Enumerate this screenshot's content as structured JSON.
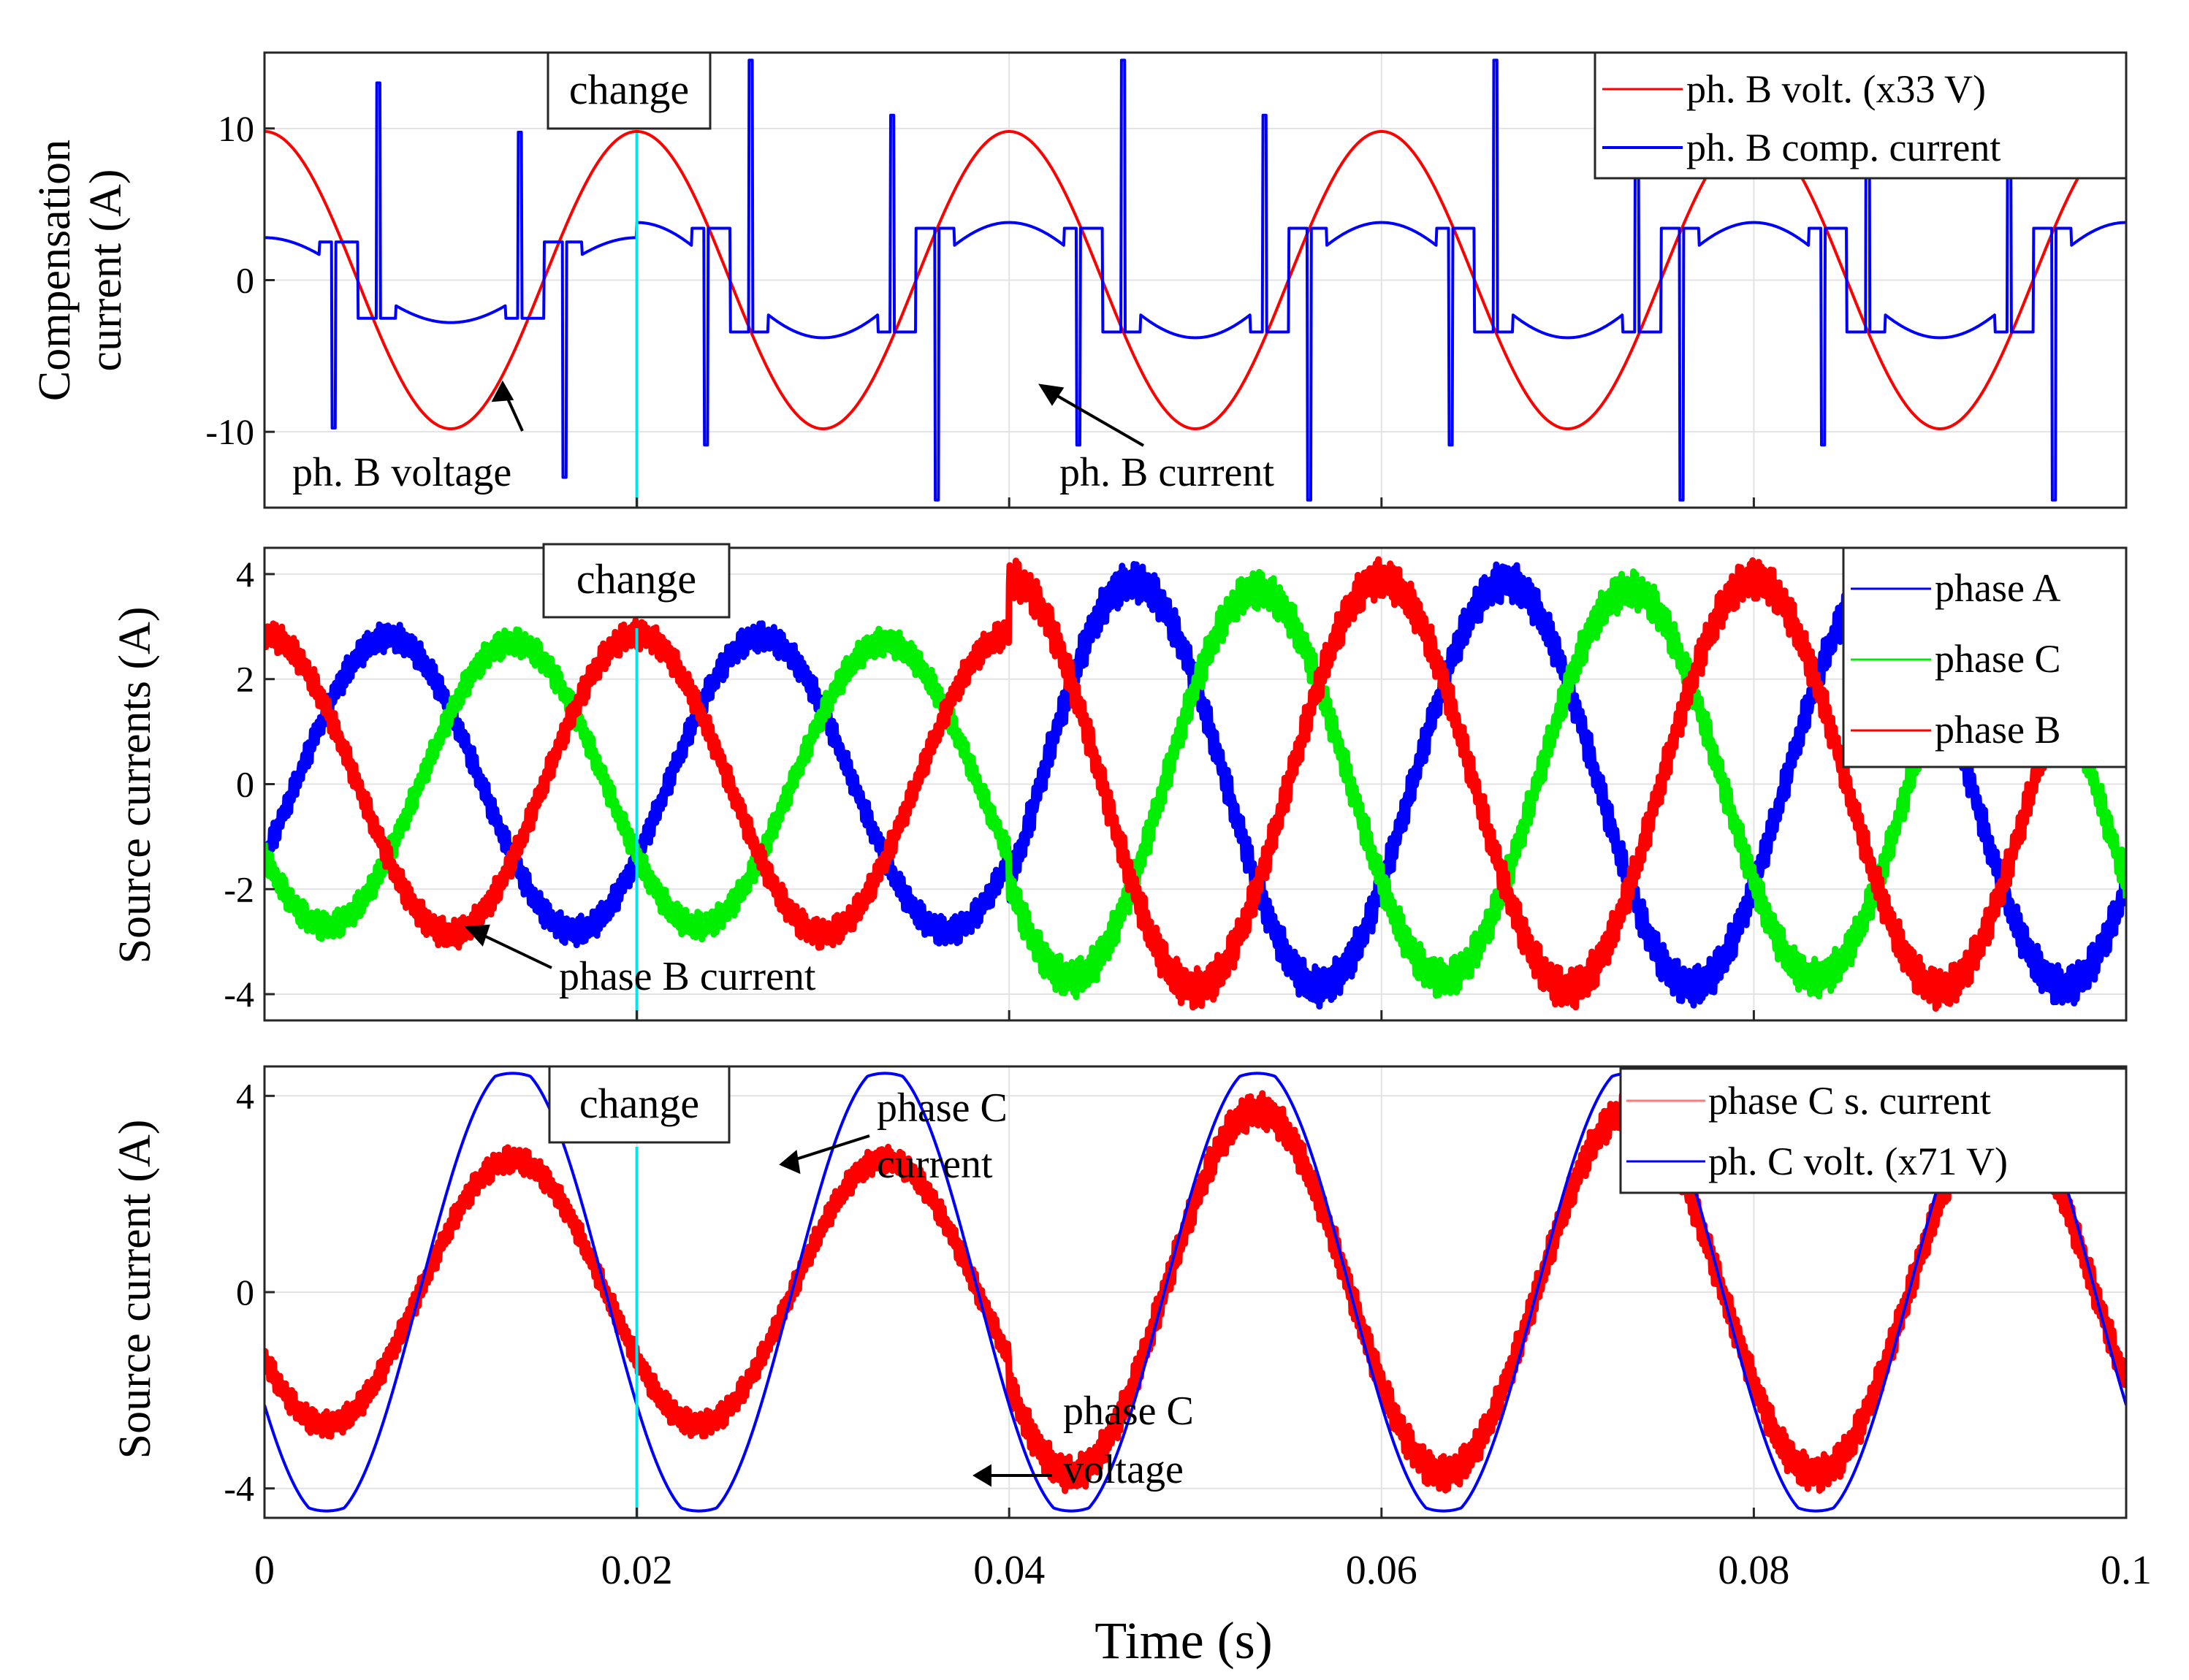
{
  "chart_data": [
    {
      "type": "line",
      "ylabel": "Compensation current (A)",
      "ylabel_lines": [
        "Compensation",
        "current (A)"
      ],
      "xlim": [
        0,
        0.1
      ],
      "ylim": [
        -15,
        15
      ],
      "yticks": [
        -10,
        0,
        10
      ],
      "ytick_labels": [
        "-10",
        "0",
        "10"
      ],
      "grid": true,
      "legend_position": "top-right",
      "legend": [
        "ph. B volt. (x33 V)",
        "ph. B comp. current"
      ],
      "series": [
        {
          "name": "ph. B volt. (x33 V)",
          "color": "#ff0000",
          "kind": "sine",
          "amplitude": 9.8,
          "phase_deg": 90,
          "frequency_hz": 50
        },
        {
          "name": "ph. B comp. current",
          "color": "#0000ff",
          "kind": "compensation",
          "before_change": {
            "peak": 13.0,
            "flat_high": 2.8,
            "flat_low": -2.8
          },
          "after_change": {
            "peak": 14.5,
            "flat_high": 3.8,
            "flat_low": -3.8
          }
        }
      ],
      "change_time": 0.02,
      "change_label": "change",
      "annotations": [
        {
          "text": "ph. B voltage",
          "x": 0.0135,
          "y": -6.5
        },
        {
          "text": "ph. B current",
          "x": 0.041,
          "y": -7.0
        }
      ]
    },
    {
      "type": "line",
      "ylabel": "Source currents (A)",
      "xlim": [
        0,
        0.1
      ],
      "ylim": [
        -4.5,
        4.5
      ],
      "yticks": [
        -4,
        -2,
        0,
        2,
        4
      ],
      "ytick_labels": [
        "-4",
        "-2",
        "0",
        "2",
        "4"
      ],
      "grid": true,
      "legend_position": "top-right",
      "legend": [
        "phase A",
        "phase C",
        "phase B"
      ],
      "series": [
        {
          "name": "phase A",
          "color": "#0000ff",
          "kind": "sine",
          "phase_deg": -30,
          "amp_before": 2.8,
          "amp_after": 3.85
        },
        {
          "name": "phase C",
          "color": "#00ee00",
          "kind": "sine",
          "phase_deg": -150,
          "amp_before": 2.7,
          "amp_after": 3.7
        },
        {
          "name": "phase B",
          "color": "#ff0000",
          "kind": "sine",
          "phase_deg": 90,
          "amp_before": 2.85,
          "amp_after": 3.9
        }
      ],
      "amplitude_step_time": 0.04,
      "change_time": 0.02,
      "change_label": "change",
      "annotations": [
        {
          "text": "phase B current",
          "x": 0.0105,
          "y": -2.9
        }
      ]
    },
    {
      "type": "line",
      "ylabel": "Source current (A)",
      "xlim": [
        0,
        0.1
      ],
      "ylim": [
        -4.6,
        4.6
      ],
      "yticks": [
        -4,
        0,
        4
      ],
      "ytick_labels": [
        "-4",
        "0",
        "4"
      ],
      "grid": true,
      "legend_position": "top-right",
      "legend": [
        "phase C s. current",
        "ph. C volt. (x71 V)"
      ],
      "series": [
        {
          "name": "phase C s. current",
          "color": "#ff0000",
          "kind": "sine",
          "phase_deg": -150,
          "amp_before": 2.7,
          "amp_after": 3.7
        },
        {
          "name": "ph. C volt. (x71 V)",
          "color": "#0000ff",
          "kind": "sine",
          "phase_deg": -150,
          "amplitude": 4.6,
          "flattop": 4.4
        }
      ],
      "amplitude_step_time": 0.04,
      "change_time": 0.02,
      "change_label": "change",
      "annotations": [
        {
          "text": "phase C",
          "text2": "current",
          "x": 0.0265,
          "y": 2.7
        },
        {
          "text": "phase C",
          "text2": "voltage",
          "x": 0.0385,
          "y": -3.9
        }
      ]
    }
  ],
  "xaxis": {
    "label": "Time (s)",
    "ticks": [
      0,
      0.02,
      0.04,
      0.06,
      0.08,
      0.1
    ],
    "tick_labels": [
      "0",
      "0.02",
      "0.04",
      "0.06",
      "0.08",
      "0.1"
    ]
  },
  "colors": {
    "red": "#ff0000",
    "blue": "#0000ff",
    "green": "#00ee00",
    "change_line": "#00e5ee"
  }
}
